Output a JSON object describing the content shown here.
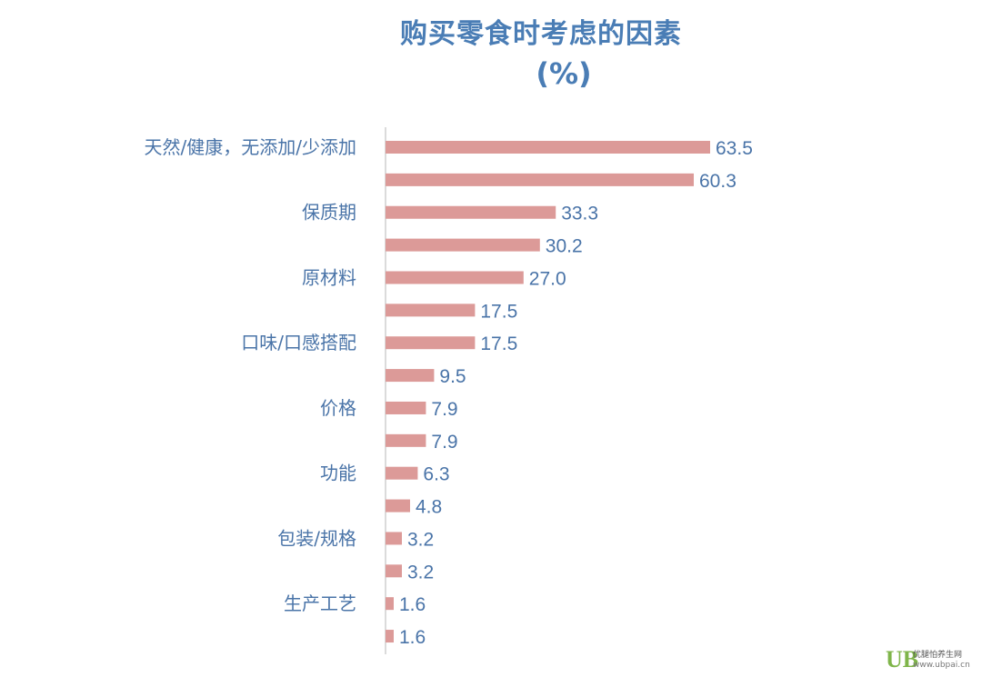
{
  "chart_data": {
    "type": "bar",
    "orientation": "horizontal",
    "title": "购买零食时考虑的因素",
    "subtitle": "(%)",
    "categories": [
      "天然/健康，无添加/少添加",
      "",
      "保质期",
      "",
      "原材料",
      "",
      "口味/口感搭配",
      "",
      "价格",
      "",
      "功能",
      "",
      "包装/规格",
      "",
      "生产工艺",
      ""
    ],
    "values": [
      63.5,
      60.3,
      33.3,
      30.2,
      27.0,
      17.5,
      17.5,
      9.5,
      7.9,
      7.9,
      6.3,
      4.8,
      3.2,
      3.2,
      1.6,
      1.6
    ],
    "value_labels": [
      "63.5",
      "60.3",
      "33.3",
      "30.2",
      "27.0",
      "17.5",
      "17.5",
      "9.5",
      "7.9",
      "7.9",
      "6.3",
      "4.8",
      "3.2",
      "3.2",
      "1.6",
      "1.6"
    ],
    "xlim": [
      0,
      63.5
    ],
    "grid": false,
    "bar_color": "#dc9a98",
    "text_color": "#4a74a8",
    "title_color": "#4a7db5"
  },
  "watermark": {
    "mark": "UB",
    "name": "优腿怕养生网",
    "url": "www.ubpai.cn"
  }
}
